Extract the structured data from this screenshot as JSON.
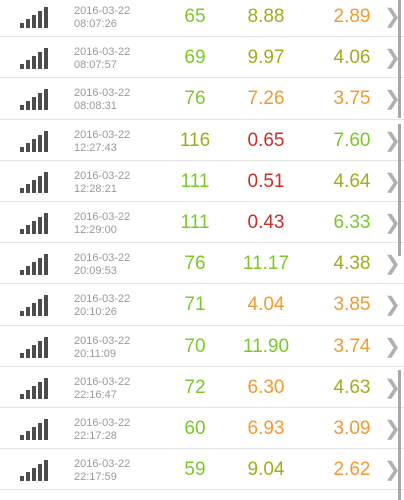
{
  "colors": {
    "green": "#7cc82a",
    "olive": "#a3ac1e",
    "orange": "#f19a30",
    "red": "#c9302c",
    "text_gray": "#9a9a9a",
    "icon_gray": "#4d4d4d"
  },
  "icons": {
    "signal": "signal-strength-icon",
    "chevron": "chevron-right-icon"
  },
  "rows": [
    {
      "date": "2016-03-22",
      "time": "08:07:26",
      "v1": "65",
      "v1_color": "#7cc82a",
      "v2": "8.88",
      "v2_color": "#a3ac1e",
      "v3": "2.89",
      "v3_color": "#f19a30"
    },
    {
      "date": "2016-03-22",
      "time": "08:07:57",
      "v1": "69",
      "v1_color": "#7cc82a",
      "v2": "9.97",
      "v2_color": "#a3ac1e",
      "v3": "4.06",
      "v3_color": "#a3ac1e"
    },
    {
      "date": "2016-03-22",
      "time": "08:08:31",
      "v1": "76",
      "v1_color": "#7cc82a",
      "v2": "7.26",
      "v2_color": "#f19a30",
      "v3": "3.75",
      "v3_color": "#f19a30"
    },
    {
      "date": "2016-03-22",
      "time": "12:27:43",
      "v1": "116",
      "v1_color": "#a3ac1e",
      "v2": "0.65",
      "v2_color": "#c9302c",
      "v3": "7.60",
      "v3_color": "#7cc82a"
    },
    {
      "date": "2016-03-22",
      "time": "12:28:21",
      "v1": "111",
      "v1_color": "#7cc82a",
      "v2": "0.51",
      "v2_color": "#c9302c",
      "v3": "4.64",
      "v3_color": "#a3ac1e"
    },
    {
      "date": "2016-03-22",
      "time": "12:29:00",
      "v1": "111",
      "v1_color": "#7cc82a",
      "v2": "0.43",
      "v2_color": "#c9302c",
      "v3": "6.33",
      "v3_color": "#7cc82a"
    },
    {
      "date": "2016-03-22",
      "time": "20:09:53",
      "v1": "76",
      "v1_color": "#7cc82a",
      "v2": "11.17",
      "v2_color": "#7cc82a",
      "v3": "4.38",
      "v3_color": "#a3ac1e"
    },
    {
      "date": "2016-03-22",
      "time": "20:10:26",
      "v1": "71",
      "v1_color": "#7cc82a",
      "v2": "4.04",
      "v2_color": "#f19a30",
      "v3": "3.85",
      "v3_color": "#f19a30"
    },
    {
      "date": "2016-03-22",
      "time": "20:11:09",
      "v1": "70",
      "v1_color": "#7cc82a",
      "v2": "11.90",
      "v2_color": "#7cc82a",
      "v3": "3.74",
      "v3_color": "#f19a30"
    },
    {
      "date": "2016-03-22",
      "time": "22:16:47",
      "v1": "72",
      "v1_color": "#7cc82a",
      "v2": "6.30",
      "v2_color": "#f19a30",
      "v3": "4.63",
      "v3_color": "#a3ac1e"
    },
    {
      "date": "2016-03-22",
      "time": "22:17:28",
      "v1": "60",
      "v1_color": "#7cc82a",
      "v2": "6.93",
      "v2_color": "#f19a30",
      "v3": "3.09",
      "v3_color": "#f19a30"
    },
    {
      "date": "2016-03-22",
      "time": "22:17:59",
      "v1": "59",
      "v1_color": "#7cc82a",
      "v2": "9.04",
      "v2_color": "#a3ac1e",
      "v3": "2.62",
      "v3_color": "#f19a30"
    }
  ]
}
